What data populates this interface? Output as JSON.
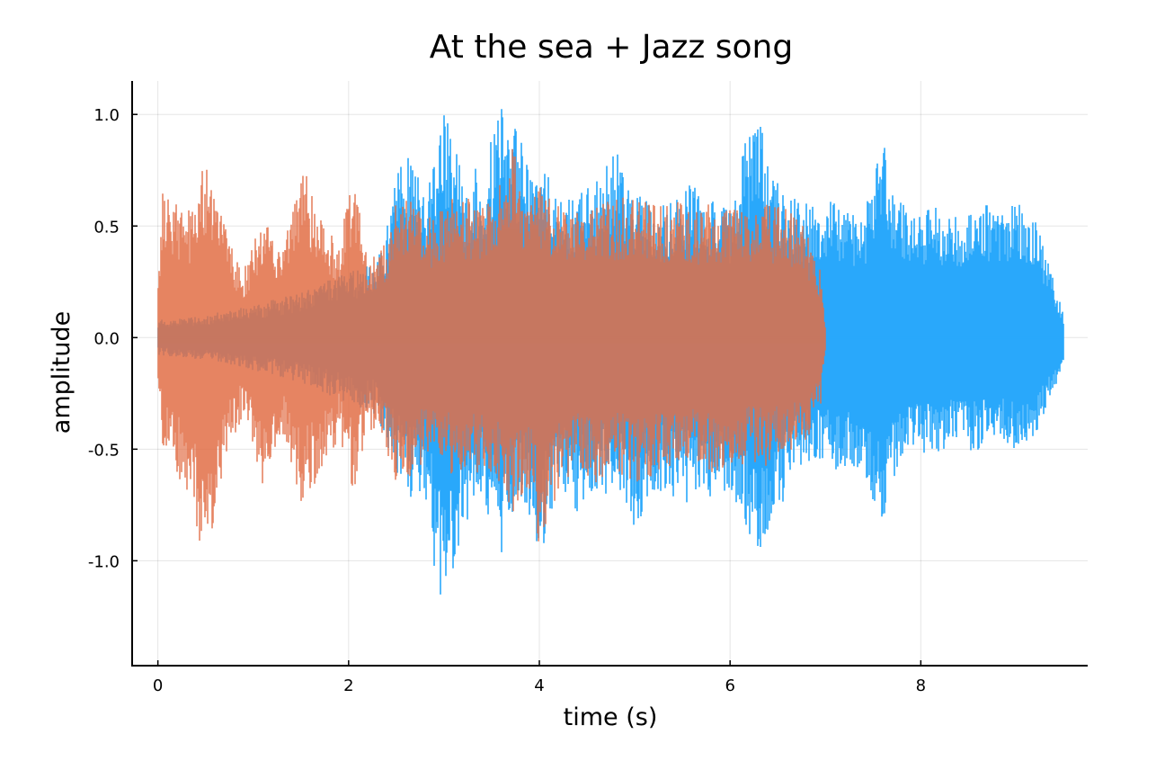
{
  "chart_data": {
    "type": "line",
    "title": "At the sea + Jazz song",
    "xlabel": "time (s)",
    "ylabel": "amplitude",
    "xlim": [
      -0.27,
      9.75
    ],
    "ylim": [
      -1.47,
      1.15
    ],
    "x_ticks": [
      0,
      2,
      4,
      6,
      8
    ],
    "x_tick_labels": [
      "0",
      "2",
      "4",
      "6",
      "8"
    ],
    "y_ticks": [
      1.0,
      0.5,
      0.0,
      -0.5,
      -1.0
    ],
    "y_tick_labels": [
      "1.0",
      "0.5",
      "0.0",
      "-0.5",
      "-1.0"
    ],
    "grid": true,
    "legend": "none",
    "series": [
      {
        "color": "#29a8fb",
        "x": [
          0.0,
          0.5,
          1.0,
          1.5,
          2.0,
          2.3,
          2.5,
          2.65,
          2.8,
          3.0,
          3.2,
          3.4,
          3.6,
          3.8,
          4.0,
          4.2,
          4.4,
          4.6,
          4.8,
          5.0,
          5.2,
          5.4,
          5.6,
          5.8,
          6.0,
          6.25,
          6.35,
          6.5,
          6.7,
          6.9,
          7.0,
          7.2,
          7.4,
          7.6,
          7.7,
          7.9,
          8.1,
          8.3,
          8.5,
          8.7,
          8.9,
          9.0,
          9.2,
          9.4,
          9.5
        ],
        "max": [
          0.08,
          0.1,
          0.15,
          0.2,
          0.3,
          0.35,
          0.72,
          0.88,
          0.62,
          1.06,
          0.72,
          0.78,
          1.03,
          0.9,
          0.82,
          0.63,
          0.65,
          0.7,
          0.84,
          0.65,
          0.6,
          0.63,
          0.7,
          0.62,
          0.6,
          1.05,
          0.9,
          0.7,
          0.62,
          0.6,
          0.62,
          0.6,
          0.55,
          0.9,
          0.65,
          0.58,
          0.6,
          0.55,
          0.57,
          0.6,
          0.58,
          0.65,
          0.55,
          0.25,
          0.1
        ],
        "min": [
          -0.08,
          -0.1,
          -0.15,
          -0.2,
          -0.3,
          -0.35,
          -0.6,
          -0.72,
          -0.7,
          -1.38,
          -0.85,
          -0.72,
          -0.98,
          -0.72,
          -1.0,
          -0.7,
          -0.78,
          -0.68,
          -0.72,
          -0.85,
          -0.7,
          -0.72,
          -0.75,
          -0.72,
          -0.68,
          -0.95,
          -1.0,
          -0.82,
          -0.6,
          -0.55,
          -0.58,
          -0.6,
          -0.62,
          -0.88,
          -0.65,
          -0.55,
          -0.52,
          -0.5,
          -0.52,
          -0.5,
          -0.48,
          -0.52,
          -0.45,
          -0.25,
          -0.1
        ]
      },
      {
        "color": "#e26f46",
        "opacity": 0.85,
        "x": [
          0.0,
          0.05,
          0.3,
          0.5,
          0.7,
          0.9,
          1.1,
          1.3,
          1.5,
          1.7,
          1.9,
          2.05,
          2.2,
          2.4,
          2.5,
          2.7,
          2.9,
          3.1,
          3.3,
          3.5,
          3.7,
          3.9,
          4.0,
          4.2,
          4.4,
          4.6,
          4.8,
          5.0,
          5.2,
          5.4,
          5.6,
          5.8,
          6.0,
          6.2,
          6.4,
          6.6,
          6.8,
          6.95,
          7.0
        ],
        "max": [
          0.2,
          0.7,
          0.55,
          0.82,
          0.5,
          0.3,
          0.55,
          0.38,
          0.82,
          0.58,
          0.4,
          0.8,
          0.35,
          0.45,
          0.7,
          0.6,
          0.55,
          0.65,
          0.62,
          0.65,
          0.88,
          0.62,
          0.7,
          0.6,
          0.58,
          0.6,
          0.62,
          0.65,
          0.6,
          0.62,
          0.58,
          0.6,
          0.62,
          0.55,
          0.6,
          0.58,
          0.5,
          0.3,
          0.05
        ],
        "min": [
          -0.2,
          -0.52,
          -0.68,
          -1.05,
          -0.55,
          -0.35,
          -0.7,
          -0.42,
          -0.75,
          -0.62,
          -0.45,
          -0.7,
          -0.4,
          -0.5,
          -0.72,
          -0.6,
          -0.55,
          -0.62,
          -0.6,
          -0.62,
          -0.8,
          -0.7,
          -0.95,
          -0.68,
          -0.6,
          -0.65,
          -0.6,
          -0.65,
          -0.62,
          -0.6,
          -0.58,
          -0.62,
          -0.6,
          -0.55,
          -0.58,
          -0.52,
          -0.48,
          -0.3,
          -0.05
        ]
      }
    ]
  }
}
